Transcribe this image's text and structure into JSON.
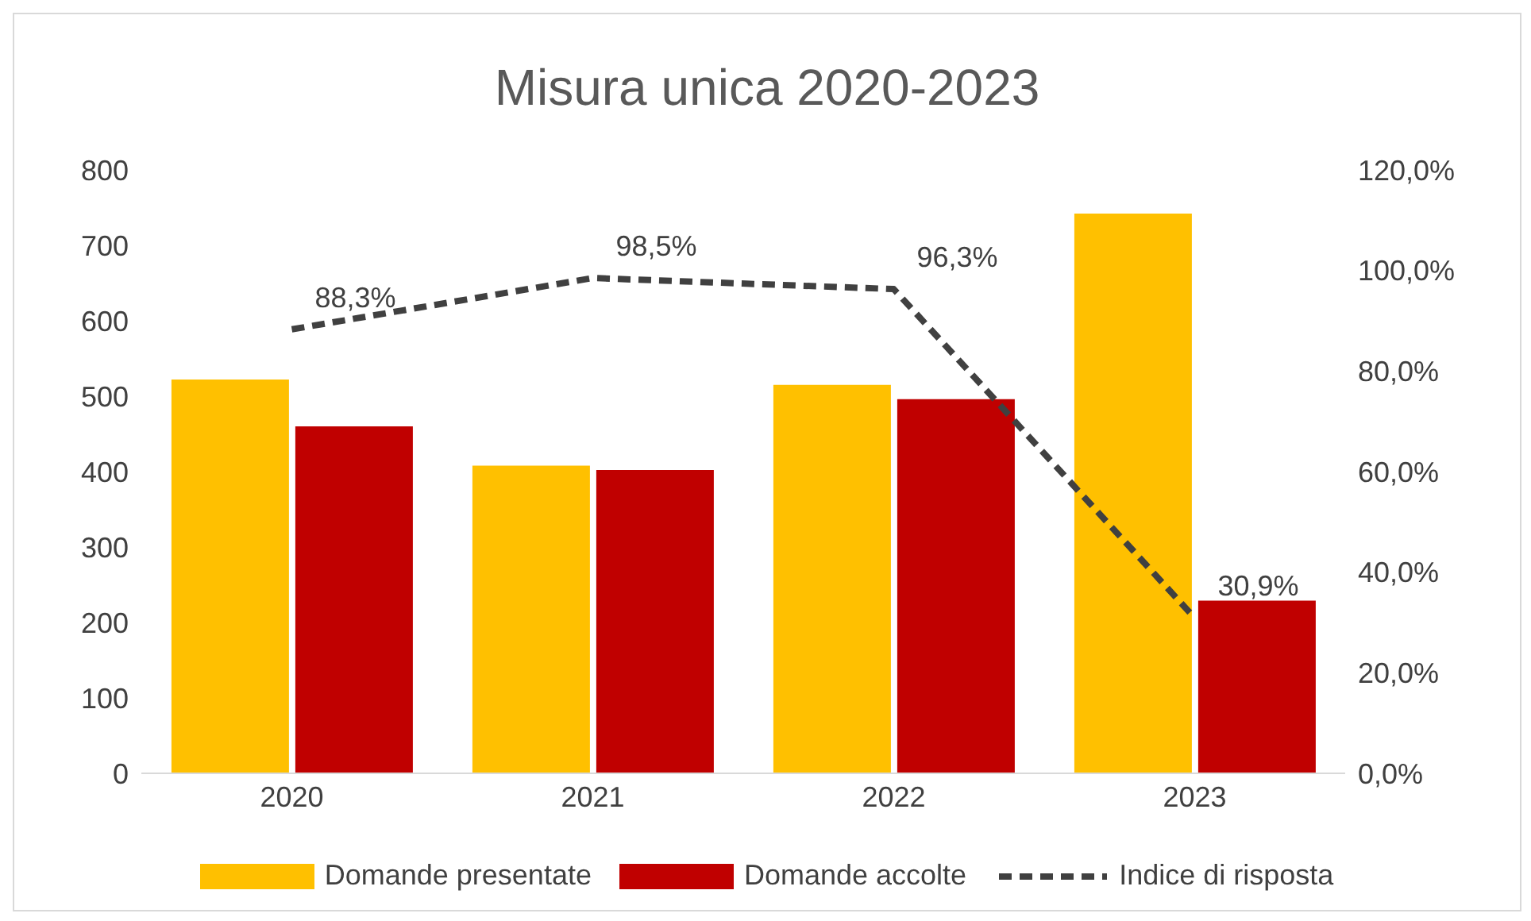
{
  "chart_data": {
    "type": "bar",
    "title": "Misura unica 2020-2023",
    "categories": [
      "2020",
      "2021",
      "2022",
      "2023"
    ],
    "series": [
      {
        "name": "Domande presentate",
        "color": "#ffc000",
        "values": [
          522,
          408,
          515,
          742
        ]
      },
      {
        "name": "Domande accolte",
        "color": "#c00000",
        "values": [
          460,
          402,
          496,
          229
        ]
      },
      {
        "name": "Indice di risposta",
        "type": "line",
        "axis": "y2",
        "color": "#404040",
        "line_style": "dashed",
        "marker": "none",
        "values": [
          88.3,
          98.5,
          96.3,
          30.9
        ],
        "value_labels": [
          "88,3%",
          "98,5%",
          "96,3%",
          "30,9%"
        ]
      }
    ],
    "ylim": [
      0,
      800
    ],
    "yticks": [
      0,
      100,
      200,
      300,
      400,
      500,
      600,
      700,
      800
    ],
    "y2lim": [
      0,
      120
    ],
    "y2ticks": [
      {
        "value": 0,
        "label": "0,0%"
      },
      {
        "value": 20,
        "label": "20,0%"
      },
      {
        "value": 40,
        "label": "40,0%"
      },
      {
        "value": 60,
        "label": "60,0%"
      },
      {
        "value": 80,
        "label": "80,0%"
      },
      {
        "value": 100,
        "label": "100,0%"
      },
      {
        "value": 120,
        "label": "120,0%"
      }
    ],
    "grid": false,
    "legend": "bottom"
  }
}
